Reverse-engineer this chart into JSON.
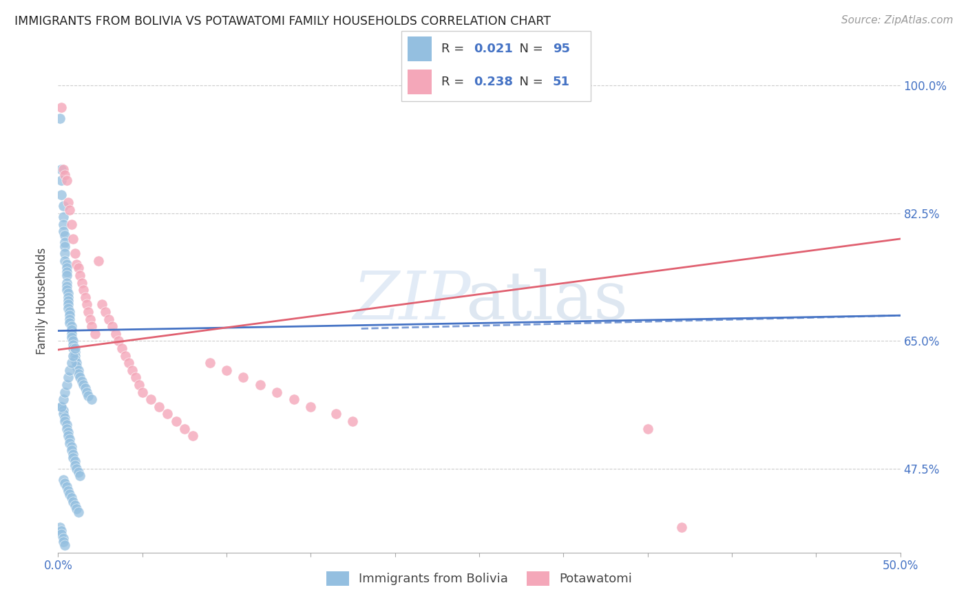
{
  "title": "IMMIGRANTS FROM BOLIVIA VS POTAWATOMI FAMILY HOUSEHOLDS CORRELATION CHART",
  "source": "Source: ZipAtlas.com",
  "ylabel": "Family Households",
  "yticks": [
    "100.0%",
    "82.5%",
    "65.0%",
    "47.5%"
  ],
  "ytick_vals": [
    1.0,
    0.825,
    0.65,
    0.475
  ],
  "xlim": [
    0.0,
    0.5
  ],
  "ylim": [
    0.36,
    1.05
  ],
  "blue_color": "#94bfe0",
  "pink_color": "#f4a7b9",
  "trendline_blue_color": "#4472c4",
  "trendline_pink_color": "#e06070",
  "blue_scatter_x": [
    0.001,
    0.002,
    0.002,
    0.002,
    0.003,
    0.003,
    0.003,
    0.003,
    0.004,
    0.004,
    0.004,
    0.004,
    0.004,
    0.005,
    0.005,
    0.005,
    0.005,
    0.005,
    0.005,
    0.005,
    0.006,
    0.006,
    0.006,
    0.006,
    0.006,
    0.007,
    0.007,
    0.007,
    0.007,
    0.008,
    0.008,
    0.008,
    0.008,
    0.009,
    0.009,
    0.009,
    0.01,
    0.01,
    0.01,
    0.011,
    0.011,
    0.012,
    0.012,
    0.013,
    0.014,
    0.015,
    0.016,
    0.017,
    0.018,
    0.02,
    0.002,
    0.003,
    0.003,
    0.004,
    0.004,
    0.005,
    0.005,
    0.006,
    0.006,
    0.007,
    0.007,
    0.008,
    0.008,
    0.009,
    0.009,
    0.01,
    0.01,
    0.011,
    0.012,
    0.013,
    0.003,
    0.004,
    0.005,
    0.006,
    0.007,
    0.008,
    0.009,
    0.01,
    0.011,
    0.012,
    0.002,
    0.003,
    0.004,
    0.005,
    0.006,
    0.007,
    0.008,
    0.009,
    0.01,
    0.001,
    0.002,
    0.002,
    0.003,
    0.003,
    0.004
  ],
  "blue_scatter_y": [
    0.955,
    0.885,
    0.87,
    0.85,
    0.835,
    0.82,
    0.81,
    0.8,
    0.795,
    0.785,
    0.78,
    0.77,
    0.76,
    0.755,
    0.75,
    0.745,
    0.74,
    0.73,
    0.725,
    0.72,
    0.715,
    0.71,
    0.705,
    0.7,
    0.695,
    0.69,
    0.685,
    0.68,
    0.675,
    0.67,
    0.665,
    0.66,
    0.655,
    0.65,
    0.645,
    0.64,
    0.635,
    0.63,
    0.625,
    0.62,
    0.615,
    0.61,
    0.605,
    0.6,
    0.595,
    0.59,
    0.585,
    0.58,
    0.575,
    0.57,
    0.56,
    0.555,
    0.55,
    0.545,
    0.54,
    0.535,
    0.53,
    0.525,
    0.52,
    0.515,
    0.51,
    0.505,
    0.5,
    0.495,
    0.49,
    0.485,
    0.48,
    0.475,
    0.47,
    0.465,
    0.46,
    0.455,
    0.45,
    0.445,
    0.44,
    0.435,
    0.43,
    0.425,
    0.42,
    0.415,
    0.56,
    0.57,
    0.58,
    0.59,
    0.6,
    0.61,
    0.62,
    0.63,
    0.64,
    0.395,
    0.39,
    0.385,
    0.38,
    0.375,
    0.37
  ],
  "pink_scatter_x": [
    0.002,
    0.003,
    0.004,
    0.005,
    0.006,
    0.007,
    0.008,
    0.009,
    0.01,
    0.011,
    0.012,
    0.013,
    0.014,
    0.015,
    0.016,
    0.017,
    0.018,
    0.019,
    0.02,
    0.022,
    0.024,
    0.026,
    0.028,
    0.03,
    0.032,
    0.034,
    0.036,
    0.038,
    0.04,
    0.042,
    0.044,
    0.046,
    0.048,
    0.05,
    0.055,
    0.06,
    0.065,
    0.07,
    0.075,
    0.08,
    0.09,
    0.1,
    0.11,
    0.12,
    0.13,
    0.14,
    0.15,
    0.165,
    0.175,
    0.35,
    0.37
  ],
  "pink_scatter_y": [
    0.97,
    0.885,
    0.878,
    0.87,
    0.84,
    0.83,
    0.81,
    0.79,
    0.77,
    0.755,
    0.75,
    0.74,
    0.73,
    0.72,
    0.71,
    0.7,
    0.69,
    0.68,
    0.67,
    0.66,
    0.76,
    0.7,
    0.69,
    0.68,
    0.67,
    0.66,
    0.65,
    0.64,
    0.63,
    0.62,
    0.61,
    0.6,
    0.59,
    0.58,
    0.57,
    0.56,
    0.55,
    0.54,
    0.53,
    0.52,
    0.62,
    0.61,
    0.6,
    0.59,
    0.58,
    0.57,
    0.56,
    0.55,
    0.54,
    0.53,
    0.395
  ],
  "blue_trend_x": [
    0.0,
    0.5
  ],
  "blue_trend_y": [
    0.664,
    0.685
  ],
  "pink_trend_x": [
    0.0,
    0.5
  ],
  "pink_trend_y": [
    0.638,
    0.79
  ],
  "leg_r1_val": "0.021",
  "leg_r1_n": "95",
  "leg_r2_val": "0.238",
  "leg_r2_n": "51"
}
